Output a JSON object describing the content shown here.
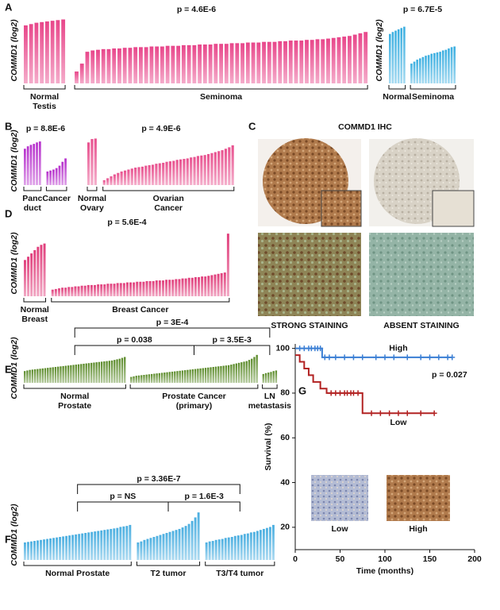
{
  "chart_data": [
    {
      "type": "bar",
      "panel": "A",
      "ylabel": "COMMD1 (log2)",
      "pvalue": "p = 4.6E-6",
      "color": "#e8468a",
      "ylim": [
        0,
        100
      ],
      "groups": [
        {
          "label": [
            "Normal",
            "Testis"
          ],
          "values": [
            88,
            90,
            92,
            93,
            94,
            95,
            96,
            97
          ]
        },
        {
          "label": [
            "Seminoma"
          ],
          "values": [
            18,
            30,
            48,
            50,
            51,
            52,
            52,
            53,
            53,
            54,
            54,
            55,
            55,
            55,
            56,
            56,
            56,
            57,
            57,
            57,
            58,
            58,
            58,
            59,
            59,
            59,
            60,
            60,
            60,
            61,
            61,
            61,
            62,
            62,
            62,
            63,
            63,
            63,
            64,
            64,
            65,
            65,
            65,
            66,
            66,
            67,
            67,
            68,
            69,
            70,
            71,
            72,
            74,
            76,
            78
          ]
        }
      ]
    },
    {
      "type": "bar",
      "ylabel": "COMMD1 (log2)",
      "pvalue": "p = 6.7E-5",
      "color": "#3aaee0",
      "ylim": [
        0,
        100
      ],
      "groups": [
        {
          "label": [
            "Normal"
          ],
          "values": [
            75,
            78,
            80,
            82,
            84,
            86
          ]
        },
        {
          "label": [
            "Seminoma"
          ],
          "values": [
            30,
            33,
            36,
            38,
            40,
            42,
            43,
            45,
            46,
            47,
            48,
            50,
            51,
            53,
            55,
            56
          ]
        }
      ]
    },
    {
      "type": "bar",
      "panel": "B",
      "ylabel": "COMMD1 (log2)",
      "pvalue": "p = 8.8E-6",
      "color": "#b62fcc",
      "ylim": [
        0,
        100
      ],
      "groups": [
        {
          "label": [
            "Panc",
            "duct"
          ],
          "values": [
            75,
            80,
            83,
            85,
            88,
            90
          ]
        },
        {
          "label": [
            "Cancer"
          ],
          "values": [
            28,
            30,
            32,
            35,
            40,
            48,
            55
          ]
        }
      ]
    },
    {
      "type": "bar",
      "pvalue": "p = 4.9E-6",
      "color": "#e8508e",
      "ylim": [
        0,
        100
      ],
      "groups": [
        {
          "label": [
            "Normal",
            "Ovary"
          ],
          "values": [
            88,
            95,
            96
          ]
        },
        {
          "label": [
            "Ovarian",
            "Cancer"
          ],
          "values": [
            10,
            14,
            18,
            22,
            25,
            28,
            30,
            32,
            34,
            36,
            37,
            38,
            40,
            41,
            42,
            44,
            45,
            46,
            48,
            49,
            50,
            52,
            53,
            54,
            55,
            57,
            58,
            60,
            61,
            62,
            64,
            66,
            68,
            70,
            72,
            75,
            78,
            82
          ]
        }
      ]
    },
    {
      "type": "image",
      "panel": "C",
      "title": "COMMD1 IHC",
      "captions": [
        "STRONG STAINING",
        "ABSENT STAINING"
      ]
    },
    {
      "type": "bar",
      "panel": "D",
      "ylabel": "COMMD1 (log2)",
      "pvalue": "p = 5.6E-4",
      "color": "#e03c7a",
      "ylim": [
        0,
        100
      ],
      "groups": [
        {
          "label": [
            "Normal",
            "Breast"
          ],
          "values": [
            55,
            60,
            65,
            70,
            75,
            78,
            80
          ]
        },
        {
          "label": [
            "Breast Cancer"
          ],
          "values": [
            10,
            11,
            12,
            13,
            13,
            14,
            14,
            15,
            15,
            16,
            16,
            17,
            17,
            17,
            18,
            18,
            18,
            19,
            19,
            19,
            20,
            20,
            20,
            21,
            21,
            21,
            22,
            22,
            22,
            23,
            23,
            23,
            24,
            24,
            24,
            25,
            25,
            25,
            26,
            26,
            27,
            27,
            28,
            28,
            29,
            29,
            30,
            30,
            31,
            32,
            33,
            34,
            35,
            36,
            95
          ]
        }
      ]
    },
    {
      "type": "bar",
      "panel": "E",
      "ylabel": "COMMD1 (log2)",
      "color": "#5a8a28",
      "ylim": [
        0,
        100
      ],
      "comparisons": [
        {
          "label": "p = 3E-4",
          "groups": [
            0,
            2
          ]
        },
        {
          "label": "p = 0.038",
          "groups": [
            0,
            1
          ]
        },
        {
          "label": "p = 3.5E-3",
          "groups": [
            1,
            2
          ]
        }
      ],
      "groups": [
        {
          "label": [
            "Normal",
            "Prostate"
          ],
          "values": [
            40,
            42,
            44,
            45,
            46,
            47,
            48,
            49,
            50,
            51,
            52,
            53,
            54,
            55,
            56,
            57,
            58,
            59,
            60,
            61,
            62,
            63,
            64,
            65,
            66,
            67,
            68,
            69,
            70,
            71,
            72,
            73,
            74,
            75,
            76,
            78,
            80,
            82,
            85,
            88
          ]
        },
        {
          "label": [
            "Prostate Cancer",
            "(primary)"
          ],
          "values": [
            20,
            22,
            24,
            25,
            26,
            27,
            28,
            29,
            30,
            31,
            32,
            33,
            34,
            35,
            36,
            37,
            38,
            39,
            40,
            41,
            42,
            43,
            44,
            45,
            46,
            47,
            48,
            49,
            50,
            51,
            52,
            53,
            54,
            55,
            56,
            57,
            58,
            59,
            60,
            62,
            64,
            66,
            68,
            70,
            72,
            74,
            78,
            82,
            88,
            95
          ]
        },
        {
          "label": [
            "LN",
            "metastasis"
          ],
          "values": [
            30,
            33,
            35,
            37,
            40,
            42
          ]
        }
      ]
    },
    {
      "type": "bar",
      "panel": "F",
      "ylabel": "COMMD1 (log2)",
      "color": "#4aaee0",
      "ylim": [
        0,
        100
      ],
      "comparisons": [
        {
          "label": "p = 3.36E-7",
          "groups": [
            0,
            2
          ]
        },
        {
          "label": "p = NS",
          "groups": [
            0,
            1
          ]
        },
        {
          "label": "p = 1.6E-3",
          "groups": [
            1,
            2
          ]
        }
      ],
      "groups": [
        {
          "label": [
            "Normal Prostate"
          ],
          "values": [
            35,
            36,
            37,
            38,
            39,
            40,
            41,
            42,
            43,
            44,
            45,
            46,
            47,
            48,
            49,
            50,
            51,
            52,
            53,
            54,
            55,
            56,
            57,
            58,
            59,
            60,
            61,
            62,
            63,
            64,
            66,
            67,
            68,
            70
          ]
        },
        {
          "label": [
            "T2 tumor"
          ],
          "values": [
            35,
            37,
            40,
            42,
            44,
            46,
            48,
            50,
            52,
            54,
            56,
            58,
            60,
            62,
            65,
            68,
            72,
            78,
            85,
            95
          ]
        },
        {
          "label": [
            "T3/T4 tumor"
          ],
          "values": [
            35,
            37,
            38,
            40,
            41,
            42,
            44,
            45,
            46,
            48,
            49,
            50,
            52,
            53,
            55,
            56,
            58,
            60,
            62,
            64,
            66,
            70
          ]
        }
      ]
    },
    {
      "type": "line",
      "panel": "G",
      "xlabel": "Time (months)",
      "ylabel": "Survival (%)",
      "pvalue": "p = 0.027",
      "xlim": [
        0,
        200
      ],
      "ylim": [
        10,
        102
      ],
      "xticks": [
        0,
        50,
        100,
        150,
        200
      ],
      "yticks": [
        20,
        40,
        60,
        80,
        100
      ],
      "insets": [
        "Low",
        "High"
      ],
      "series": [
        {
          "name": "High",
          "color": "#3b7fd4",
          "x": [
            0,
            30,
            30,
            175
          ],
          "values": [
            100,
            100,
            96,
            96
          ],
          "censor_x": [
            5,
            10,
            15,
            18,
            22,
            25,
            28,
            33,
            38,
            45,
            55,
            65,
            75,
            90,
            100,
            110,
            125,
            140,
            150,
            160,
            170,
            175
          ],
          "censor_y": [
            100,
            100,
            100,
            100,
            100,
            100,
            100,
            96,
            96,
            96,
            96,
            96,
            96,
            96,
            96,
            96,
            96,
            96,
            96,
            96,
            96,
            96
          ]
        },
        {
          "name": "Low",
          "color": "#b22222",
          "x": [
            0,
            5,
            5,
            10,
            10,
            15,
            15,
            20,
            20,
            28,
            28,
            35,
            35,
            75,
            75,
            155
          ],
          "values": [
            97,
            97,
            94,
            94,
            91,
            91,
            88,
            88,
            85,
            85,
            82,
            82,
            80,
            80,
            71,
            71
          ],
          "censor_x": [
            40,
            45,
            50,
            55,
            58,
            62,
            65,
            70,
            85,
            95,
            105,
            115,
            125,
            140,
            155
          ],
          "censor_y": [
            80,
            80,
            80,
            80,
            80,
            80,
            80,
            80,
            71,
            71,
            71,
            71,
            71,
            71,
            71
          ]
        }
      ]
    }
  ]
}
